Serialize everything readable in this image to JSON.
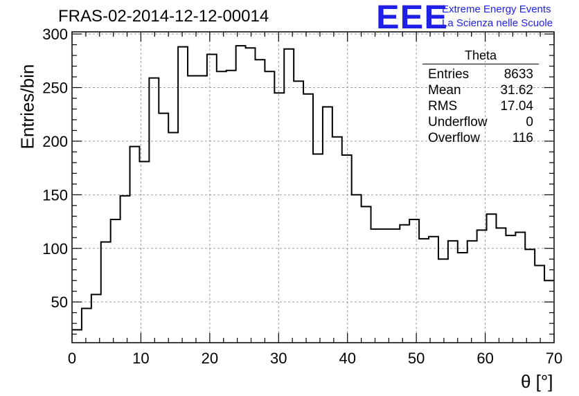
{
  "title": "FRAS-02-2014-12-12-00014",
  "logo": {
    "mark": "EEE",
    "line1": "Extreme Energy Events",
    "line2": "La Scienza nelle Scuole",
    "color": "#1f1fe8"
  },
  "stats": {
    "title": "Theta",
    "rows": [
      {
        "label": "Entries",
        "value": "8633"
      },
      {
        "label": "Mean",
        "value": "31.62"
      },
      {
        "label": "RMS",
        "value": "17.04"
      },
      {
        "label": "Underflow",
        "value": "0"
      },
      {
        "label": "Overflow",
        "value": "116"
      }
    ]
  },
  "chart_data": {
    "type": "bar",
    "histogram_style": "step",
    "title": "FRAS-02-2014-12-12-00014",
    "xlabel": "θ [°]",
    "ylabel": "Entries/bin",
    "xlim": [
      0,
      70
    ],
    "ylim": [
      12,
      302
    ],
    "bin_width": 1.4,
    "xticks": [
      0,
      10,
      20,
      30,
      40,
      50,
      60,
      70
    ],
    "yticks": [
      50,
      100,
      150,
      200,
      250,
      300
    ],
    "grid": true,
    "values": [
      24,
      44,
      57,
      106,
      127,
      149,
      195,
      181,
      259,
      226,
      208,
      288,
      261,
      261,
      281,
      265,
      266,
      289,
      287,
      276,
      265,
      245,
      286,
      256,
      244,
      188,
      232,
      204,
      187,
      150,
      139,
      118,
      118,
      118,
      122,
      127,
      109,
      111,
      90,
      107,
      96,
      107,
      117,
      132,
      119,
      112,
      115,
      99,
      84,
      70
    ]
  }
}
